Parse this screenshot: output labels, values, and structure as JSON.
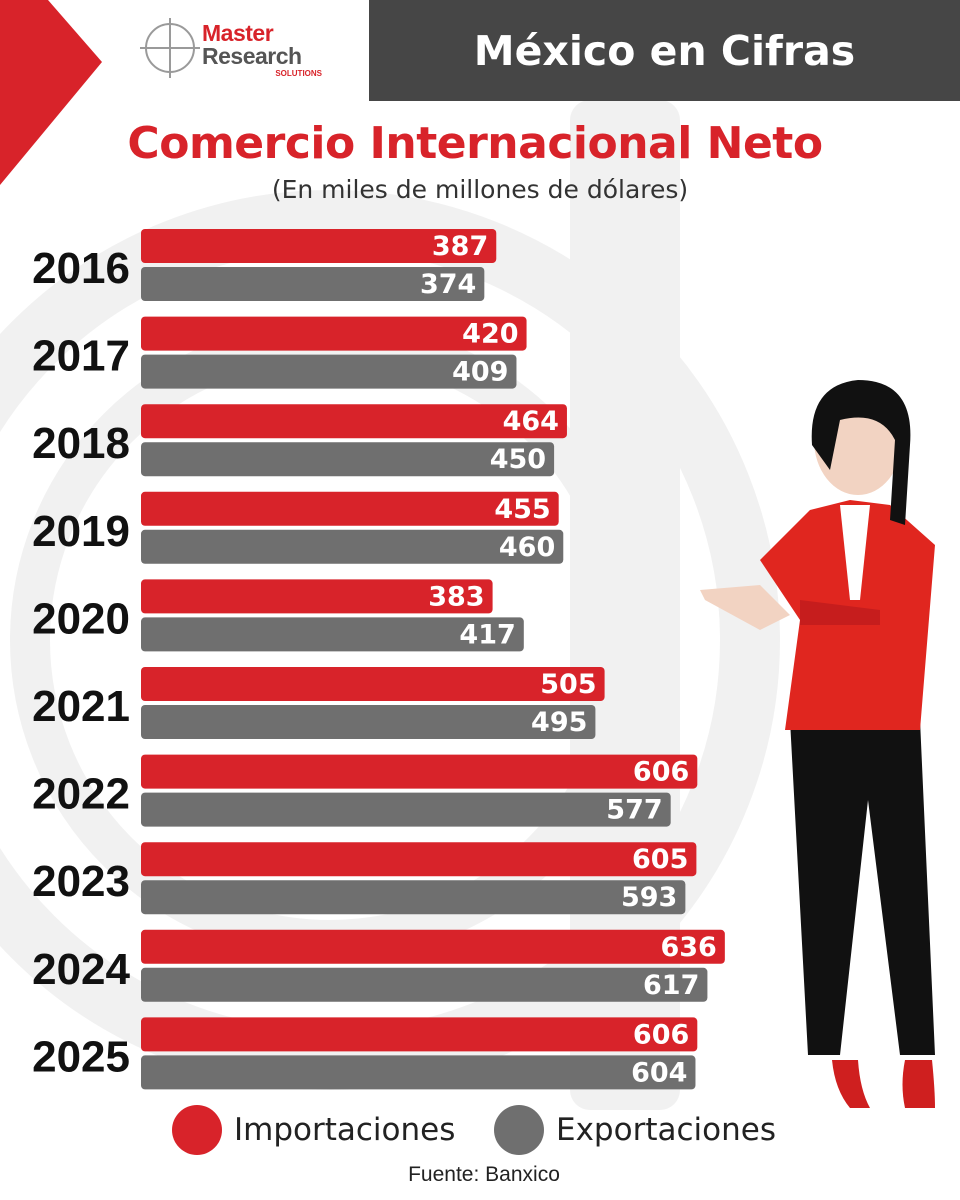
{
  "header": {
    "title": "México en Cifras"
  },
  "logo": {
    "line1": "Master",
    "line2": "Research",
    "line3": "SOLUTIONS"
  },
  "colors": {
    "imports": "#d8232a",
    "exports": "#6f6f6f",
    "header_bg": "#464646"
  },
  "chart_data": {
    "type": "bar",
    "orientation": "horizontal",
    "title": "Comercio Internacional Neto",
    "subtitle": "(En miles de millones de dólares)",
    "categories": [
      "2016",
      "2017",
      "2018",
      "2019",
      "2020",
      "2021",
      "2022",
      "2023",
      "2024",
      "2025"
    ],
    "series": [
      {
        "name": "Importaciones",
        "color": "#d8232a",
        "values": [
          387,
          420,
          464,
          455,
          383,
          505,
          606,
          605,
          636,
          606
        ]
      },
      {
        "name": "Exportaciones",
        "color": "#6f6f6f",
        "values": [
          374,
          409,
          450,
          460,
          417,
          495,
          577,
          593,
          617,
          604
        ]
      }
    ],
    "xlim": [
      0,
      700
    ],
    "legend_position": "bottom",
    "source": "Fuente: Banxico"
  },
  "legend": {
    "imports_label": "Importaciones",
    "exports_label": "Exportaciones"
  },
  "footer": {
    "source": "Fuente: Banxico"
  }
}
